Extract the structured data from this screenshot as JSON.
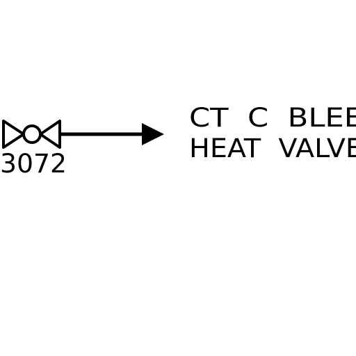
{
  "valve": {
    "tag": "3072",
    "symbol": "valve-icon"
  },
  "flow_arrow": {
    "symbol": "arrow-right-icon"
  },
  "destination": {
    "line1": "CT  C  BLEE",
    "line2": "HEAT  VALVE"
  },
  "colors": {
    "line": "#000000",
    "background": "#ffffff"
  }
}
